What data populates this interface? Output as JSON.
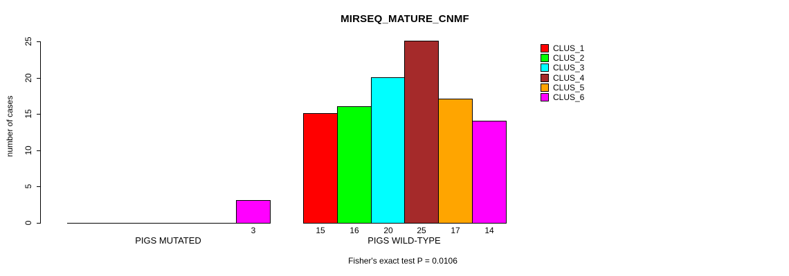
{
  "chart_data": {
    "type": "bar",
    "title": "MIRSEQ_MATURE_CNMF",
    "ylabel": "number of cases",
    "ylim": [
      0,
      25
    ],
    "yticks": [
      0,
      5,
      10,
      15,
      20,
      25
    ],
    "grid": false,
    "legend_position": "right",
    "legend": [
      {
        "label": "CLUS_1",
        "color": "#ff0000"
      },
      {
        "label": "CLUS_2",
        "color": "#00ff00"
      },
      {
        "label": "CLUS_3",
        "color": "#00ffff"
      },
      {
        "label": "CLUS_4",
        "color": "#a52a2a"
      },
      {
        "label": "CLUS_5",
        "color": "#ffa500"
      },
      {
        "label": "CLUS_6",
        "color": "#ff00ff"
      }
    ],
    "groups": [
      {
        "label": "PIGS MUTATED",
        "values": [
          0,
          0,
          0,
          0,
          0,
          3
        ]
      },
      {
        "label": "PIGS WILD-TYPE",
        "values": [
          15,
          16,
          20,
          25,
          17,
          14
        ]
      }
    ],
    "footer": "Fisher's exact test P = 0.0106"
  }
}
